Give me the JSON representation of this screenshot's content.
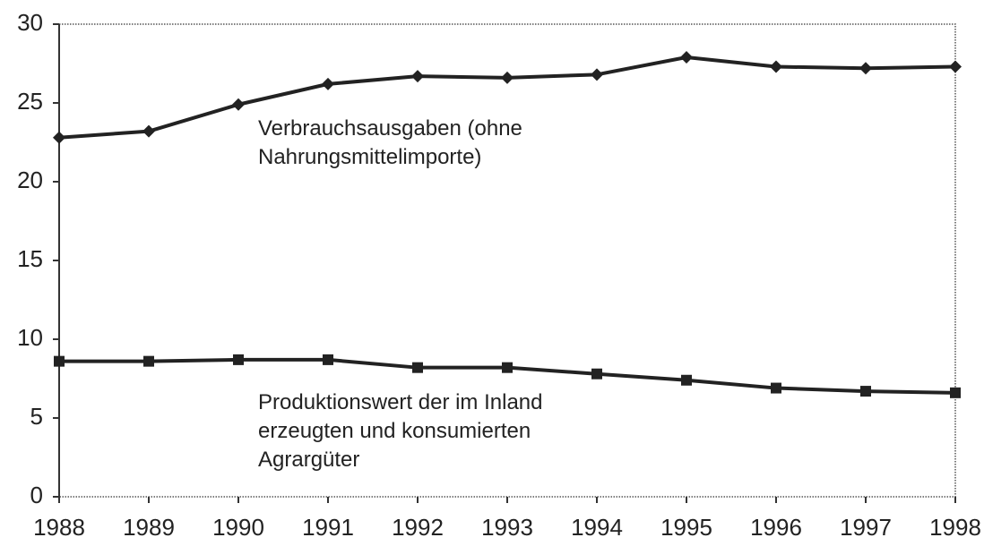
{
  "chart_data": {
    "type": "line",
    "x": [
      1988,
      1989,
      1990,
      1991,
      1992,
      1993,
      1994,
      1995,
      1996,
      1997,
      1998
    ],
    "series": [
      {
        "name": "Verbrauchsausgaben (ohne\nNahrungsmittelimporte)",
        "color": "#222222",
        "marker": "diamond",
        "values": [
          22.8,
          23.2,
          24.9,
          26.2,
          26.7,
          26.6,
          26.8,
          27.9,
          27.3,
          27.2,
          27.3
        ]
      },
      {
        "name": "Produktionswert der im Inland\nerzeugten und konsumierten\nAgrargüter",
        "color": "#222222",
        "marker": "square",
        "values": [
          8.6,
          8.6,
          8.7,
          8.7,
          8.2,
          8.2,
          7.8,
          7.4,
          6.9,
          6.7,
          6.6
        ]
      }
    ],
    "xlim": [
      1988,
      1998
    ],
    "xticks": [
      1988,
      1989,
      1990,
      1991,
      1992,
      1993,
      1994,
      1995,
      1996,
      1997,
      1998
    ],
    "ylim": [
      0,
      30
    ],
    "yticks": [
      0,
      5,
      10,
      15,
      20,
      25,
      30
    ]
  }
}
